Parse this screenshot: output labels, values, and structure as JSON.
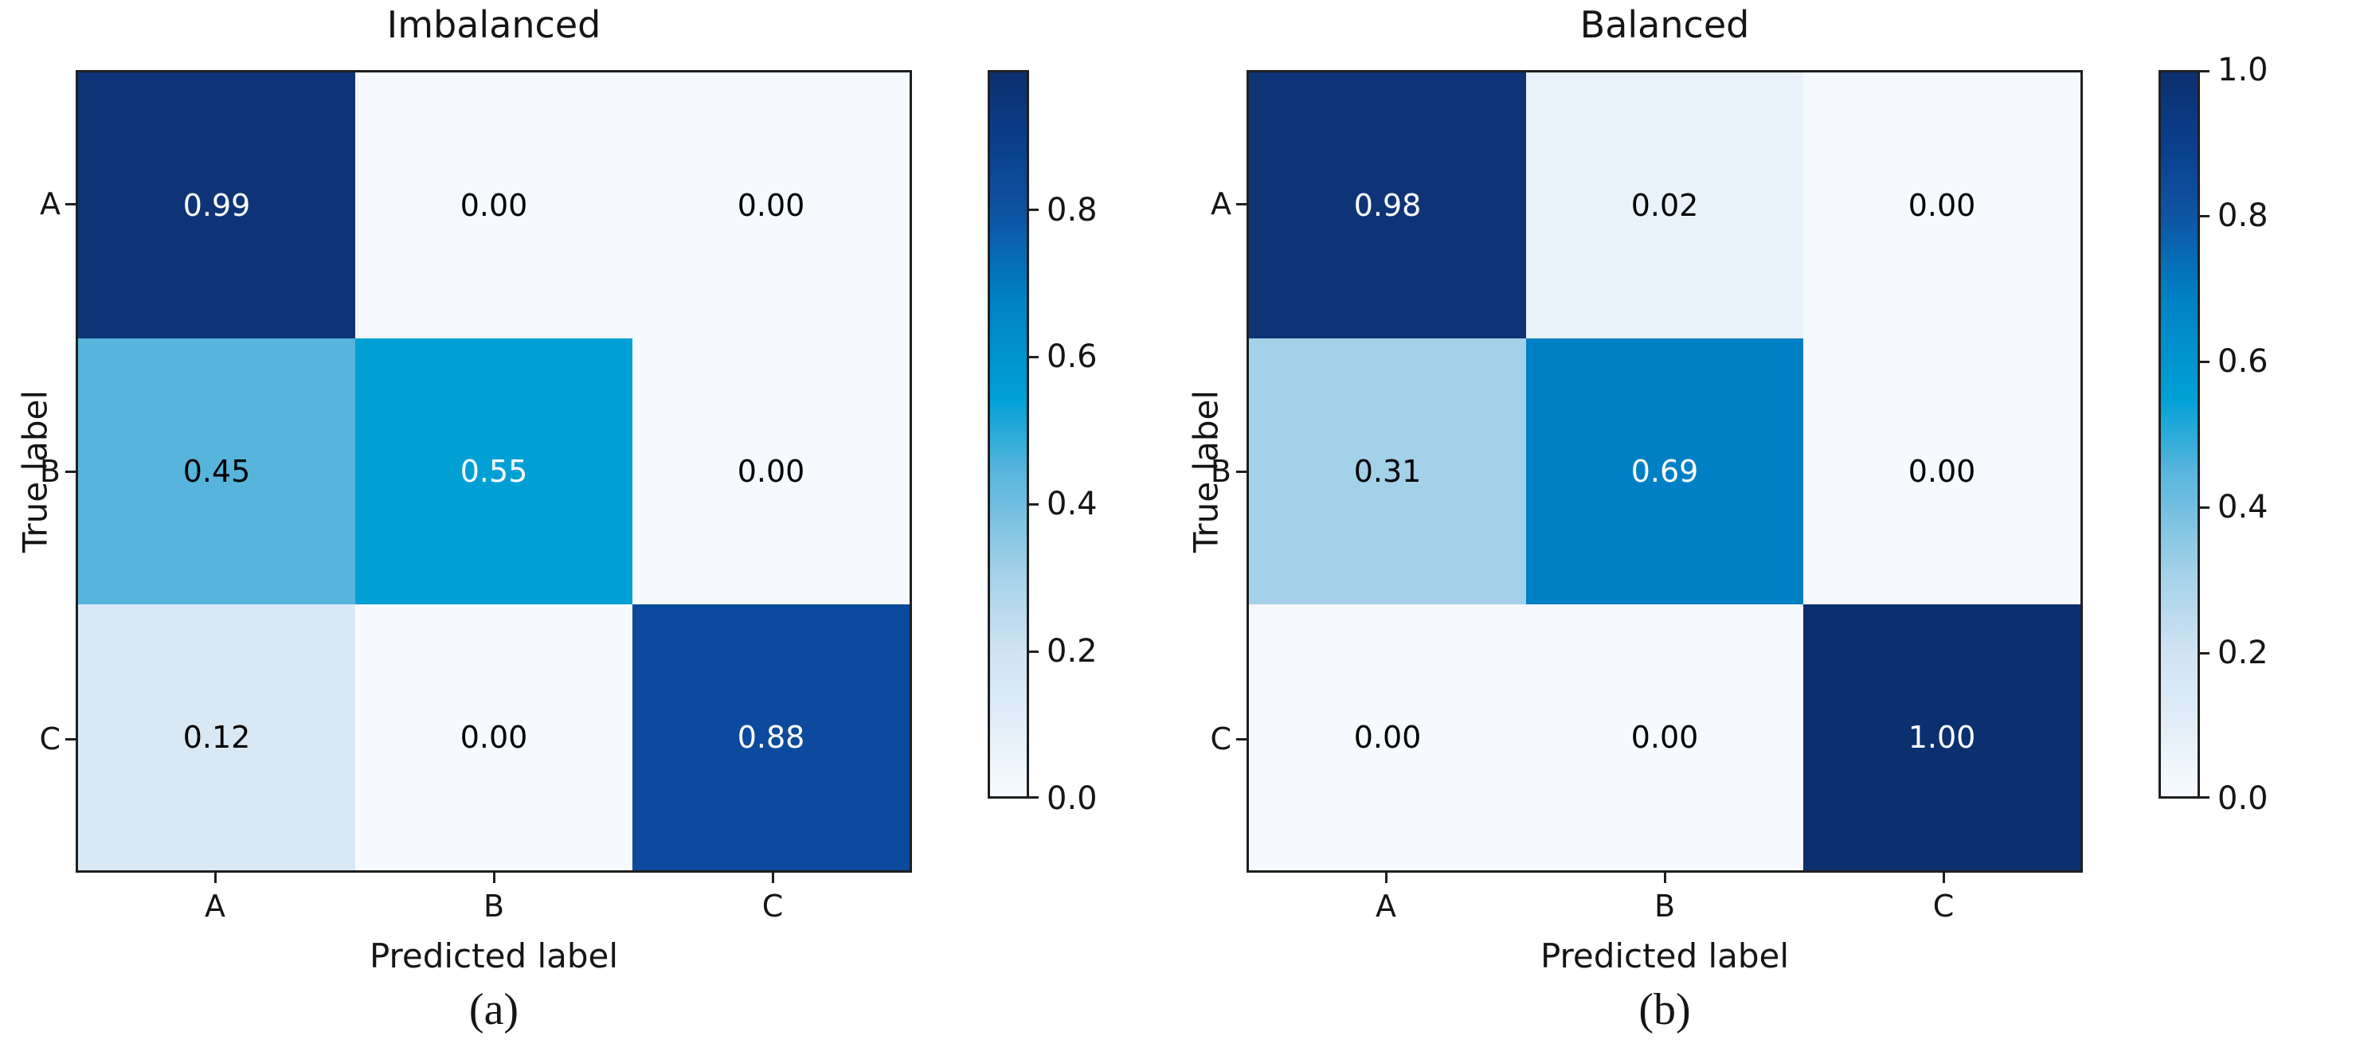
{
  "figure": {
    "background": "#ffffff",
    "frame_color": "#1f1f1f"
  },
  "colormap": {
    "name": "Blues",
    "stops": [
      [
        0.0,
        "#f7fbff"
      ],
      [
        0.1,
        "#e2eef8"
      ],
      [
        0.2,
        "#cfe3f3"
      ],
      [
        0.31,
        "#a3d1e8"
      ],
      [
        0.45,
        "#57b5dd"
      ],
      [
        0.55,
        "#00a0d5"
      ],
      [
        0.69,
        "#0080c4"
      ],
      [
        0.8,
        "#0e55a4"
      ],
      [
        0.9,
        "#0a3f8c"
      ],
      [
        1.0,
        "#0c2f6f"
      ]
    ]
  },
  "chart_data": [
    {
      "type": "heatmap",
      "title": "Imbalanced",
      "caption": "(a)",
      "xlabel": "Predicted label",
      "ylabel": "True label",
      "x_categories": [
        "A",
        "B",
        "C"
      ],
      "y_categories": [
        "A",
        "B",
        "C"
      ],
      "values": [
        [
          0.99,
          0.0,
          0.0
        ],
        [
          0.45,
          0.55,
          0.0
        ],
        [
          0.12,
          0.0,
          0.88
        ]
      ],
      "value_labels": [
        [
          "0.99",
          "0.00",
          "0.00"
        ],
        [
          "0.45",
          "0.55",
          "0.00"
        ],
        [
          "0.12",
          "0.00",
          "0.88"
        ]
      ],
      "cell_colors": [
        [
          "#0e3477",
          "#f6fafe",
          "#f6fafe"
        ],
        [
          "#57b5dd",
          "#00a0d5",
          "#f6fafe"
        ],
        [
          "#d9e8f5",
          "#f6fafe",
          "#0b4a9c"
        ]
      ],
      "text_colors": [
        [
          "#ffffff",
          "#000000",
          "#000000"
        ],
        [
          "#000000",
          "#ffffff",
          "#000000"
        ],
        [
          "#000000",
          "#000000",
          "#ffffff"
        ]
      ],
      "colorbar": {
        "vmin": 0.0,
        "vmax": 0.99,
        "tick_labels": [
          "0.8",
          "0.6",
          "0.4",
          "0.2",
          "0.0"
        ],
        "tick_values": [
          0.8,
          0.6,
          0.4,
          0.2,
          0.0
        ]
      }
    },
    {
      "type": "heatmap",
      "title": "Balanced",
      "caption": "(b)",
      "xlabel": "Predicted label",
      "ylabel": "True label",
      "x_categories": [
        "A",
        "B",
        "C"
      ],
      "y_categories": [
        "A",
        "B",
        "C"
      ],
      "values": [
        [
          0.98,
          0.02,
          0.0
        ],
        [
          0.31,
          0.69,
          0.0
        ],
        [
          0.0,
          0.0,
          1.0
        ]
      ],
      "value_labels": [
        [
          "0.98",
          "0.02",
          "0.00"
        ],
        [
          "0.31",
          "0.69",
          "0.00"
        ],
        [
          "0.00",
          "0.00",
          "1.00"
        ]
      ],
      "cell_colors": [
        [
          "#0e3477",
          "#e9f2fa",
          "#f6fafe"
        ],
        [
          "#a3d1e8",
          "#0080c4",
          "#f6fafe"
        ],
        [
          "#f6fafe",
          "#f6fafe",
          "#0c2f6f"
        ]
      ],
      "text_colors": [
        [
          "#ffffff",
          "#000000",
          "#000000"
        ],
        [
          "#000000",
          "#ffffff",
          "#000000"
        ],
        [
          "#000000",
          "#000000",
          "#ffffff"
        ]
      ],
      "colorbar": {
        "vmin": 0.0,
        "vmax": 1.0,
        "tick_labels": [
          "1.0",
          "0.8",
          "0.6",
          "0.4",
          "0.2",
          "0.0"
        ],
        "tick_values": [
          1.0,
          0.8,
          0.6,
          0.4,
          0.2,
          0.0
        ]
      }
    }
  ]
}
